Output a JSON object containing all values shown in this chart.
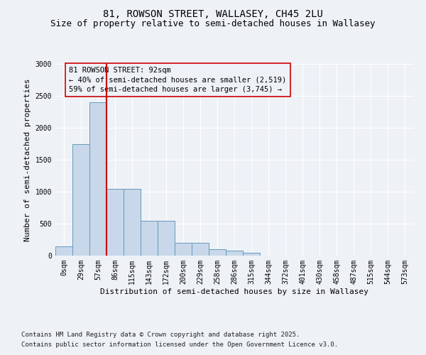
{
  "title1": "81, ROWSON STREET, WALLASEY, CH45 2LU",
  "title2": "Size of property relative to semi-detached houses in Wallasey",
  "xlabel": "Distribution of semi-detached houses by size in Wallasey",
  "ylabel": "Number of semi-detached properties",
  "categories": [
    "0sqm",
    "29sqm",
    "57sqm",
    "86sqm",
    "115sqm",
    "143sqm",
    "172sqm",
    "200sqm",
    "229sqm",
    "258sqm",
    "286sqm",
    "315sqm",
    "344sqm",
    "372sqm",
    "401sqm",
    "430sqm",
    "458sqm",
    "487sqm",
    "515sqm",
    "544sqm",
    "573sqm"
  ],
  "values": [
    150,
    1750,
    2400,
    1050,
    1050,
    550,
    550,
    200,
    200,
    100,
    75,
    50,
    5,
    5,
    5,
    2,
    2,
    2,
    1,
    1,
    1
  ],
  "bar_color": "#c8d8ea",
  "bar_edge_color": "#6699bb",
  "vline_color": "#cc0000",
  "annotation_box_color": "#cc0000",
  "annotation_box_text": "81 ROWSON STREET: 92sqm\n← 40% of semi-detached houses are smaller (2,519)\n59% of semi-detached houses are larger (3,745) →",
  "ylim": [
    0,
    3000
  ],
  "yticks": [
    0,
    500,
    1000,
    1500,
    2000,
    2500,
    3000
  ],
  "footnote1": "Contains HM Land Registry data © Crown copyright and database right 2025.",
  "footnote2": "Contains public sector information licensed under the Open Government Licence v3.0.",
  "bg_color": "#eef2f7",
  "grid_color": "#ffffff",
  "title1_fontsize": 10,
  "title2_fontsize": 9,
  "annotation_fontsize": 7.5,
  "axis_label_fontsize": 8,
  "tick_fontsize": 7,
  "footnote_fontsize": 6.5
}
